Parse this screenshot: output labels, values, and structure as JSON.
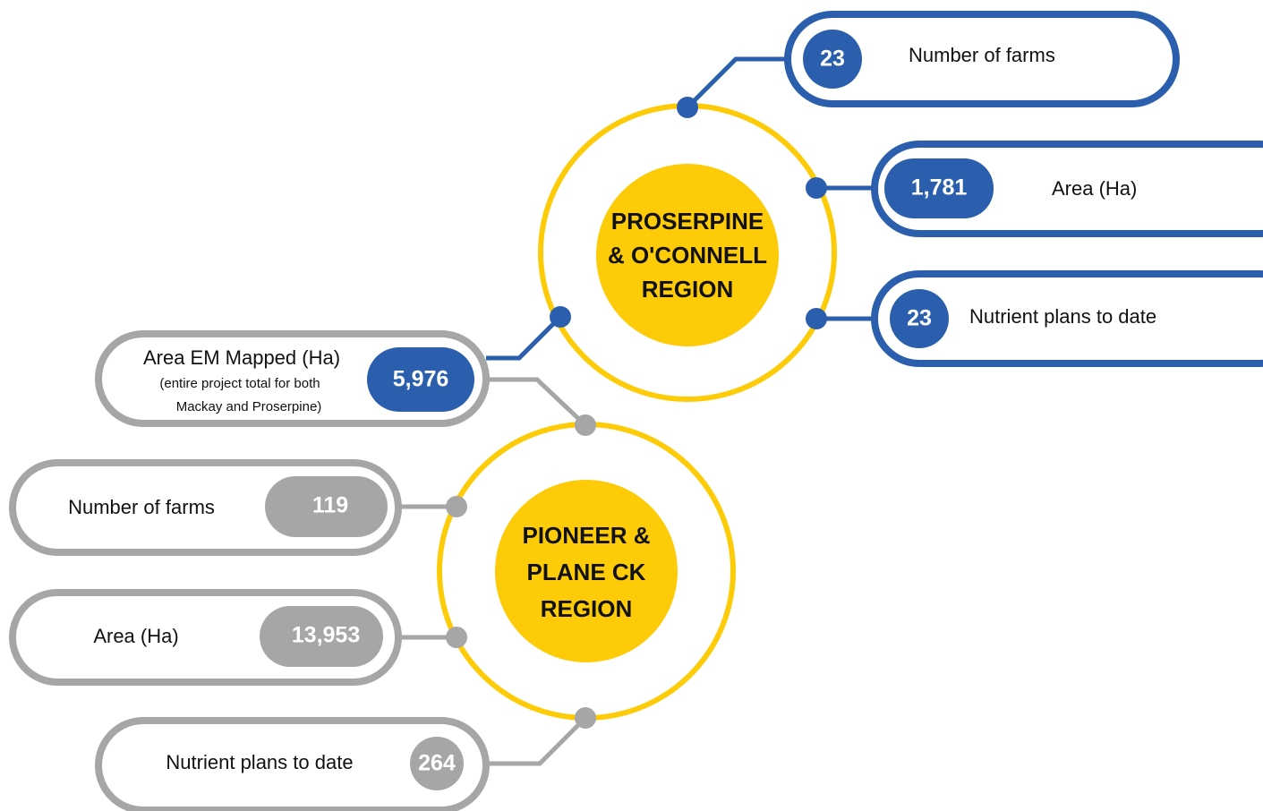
{
  "regions": [
    {
      "name_lines": [
        "PROSERPINE",
        "& O'CONNELL",
        "REGION"
      ],
      "stats": [
        {
          "value": "23",
          "label": "Number of farms"
        },
        {
          "value": "1,781",
          "label": "Area (Ha)"
        },
        {
          "value": "23",
          "label": "Nutrient plans to date"
        }
      ]
    },
    {
      "name_lines": [
        "PIONEER &",
        "PLANE CK",
        "REGION"
      ],
      "stats": [
        {
          "value": "119",
          "label": "Number of farms"
        },
        {
          "value": "13,953",
          "label": "Area (Ha)"
        },
        {
          "value": "264",
          "label": "Nutrient plans to date"
        }
      ]
    }
  ],
  "shared": {
    "value": "5,976",
    "label": "Area EM Mapped (Ha)",
    "note_lines": [
      "(entire project total for both",
      "Mackay and Proserpine)"
    ]
  }
}
